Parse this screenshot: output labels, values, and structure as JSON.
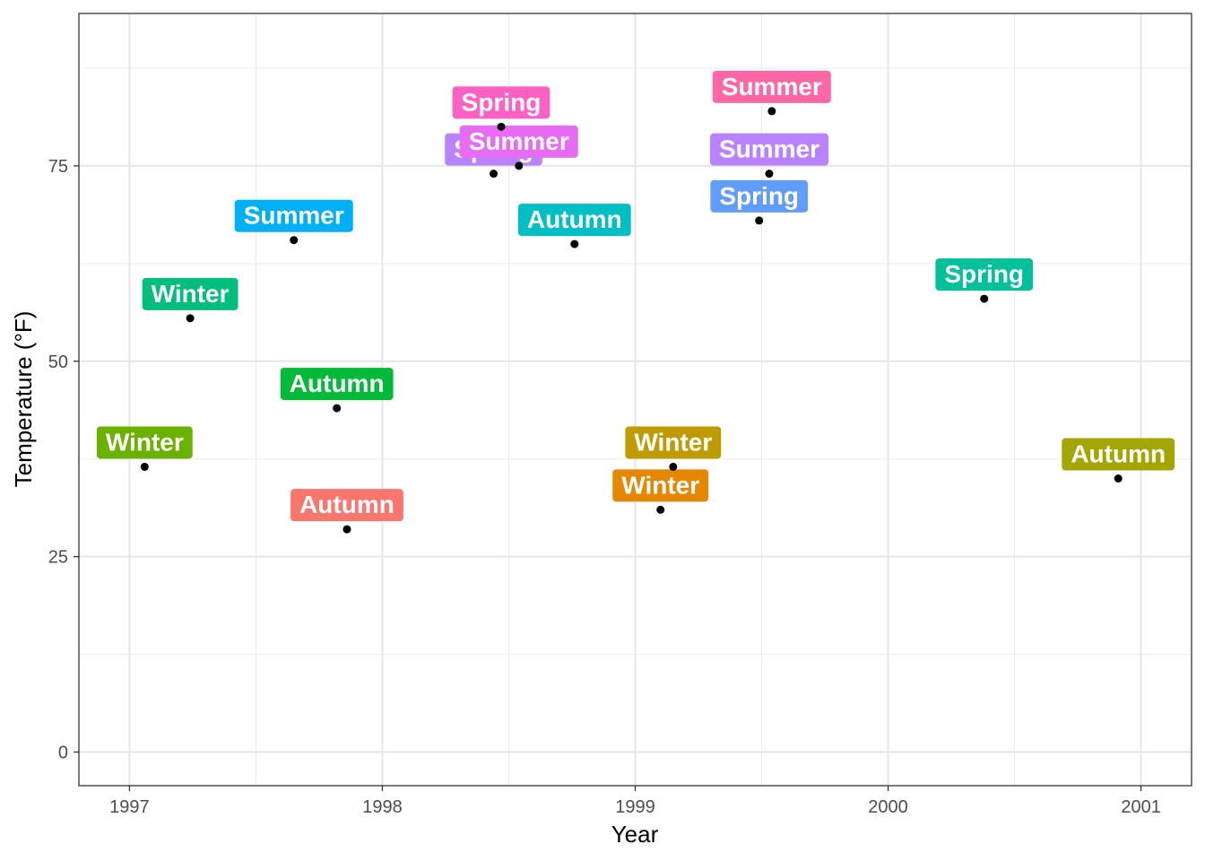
{
  "chart_data": {
    "type": "scatter",
    "title": "",
    "xlabel": "Year",
    "ylabel": "Temperature (°F)",
    "xlim": [
      1996.8,
      2001.2
    ],
    "ylim": [
      -4.3,
      94.5
    ],
    "x_ticks": [
      1997,
      1998,
      1999,
      2000,
      2001
    ],
    "y_ticks": [
      0,
      25,
      50,
      75
    ],
    "x_minor": [
      1997.5,
      1998.5,
      1999.5,
      2000.5
    ],
    "y_minor": [
      12.5,
      37.5,
      62.5,
      87.5
    ],
    "grid": true,
    "legend": "none",
    "points": [
      {
        "x": 1997.06,
        "y": 36.5,
        "label": "Winter",
        "color": "#6BB100"
      },
      {
        "x": 1997.24,
        "y": 55.5,
        "label": "Winter",
        "color": "#00BF7D"
      },
      {
        "x": 1997.65,
        "y": 65.5,
        "label": "Summer",
        "color": "#00B0F6"
      },
      {
        "x": 1997.82,
        "y": 44.0,
        "label": "Autumn",
        "color": "#00BA38"
      },
      {
        "x": 1997.86,
        "y": 28.5,
        "label": "Autumn",
        "color": "#F8766D"
      },
      {
        "x": 1998.44,
        "y": 74.0,
        "label": "Spring",
        "color": "#B983FF"
      },
      {
        "x": 1998.47,
        "y": 80.0,
        "label": "Spring",
        "color": "#FF61C3"
      },
      {
        "x": 1998.54,
        "y": 75.0,
        "label": "Summer",
        "color": "#E76BF3"
      },
      {
        "x": 1998.76,
        "y": 65.0,
        "label": "Autumn",
        "color": "#00BFC4"
      },
      {
        "x": 1999.15,
        "y": 36.5,
        "label": "Winter",
        "color": "#C09B00"
      },
      {
        "x": 1999.1,
        "y": 31.0,
        "label": "Winter",
        "color": "#E58700"
      },
      {
        "x": 1999.49,
        "y": 68.0,
        "label": "Spring",
        "color": "#619CFF"
      },
      {
        "x": 1999.53,
        "y": 74.0,
        "label": "Summer",
        "color": "#B983FF"
      },
      {
        "x": 1999.54,
        "y": 82.0,
        "label": "Summer",
        "color": "#FF67A4"
      },
      {
        "x": 2000.38,
        "y": 58.0,
        "label": "Spring",
        "color": "#00C19A"
      },
      {
        "x": 2000.91,
        "y": 35.0,
        "label": "Autumn",
        "color": "#A3A500"
      }
    ]
  }
}
